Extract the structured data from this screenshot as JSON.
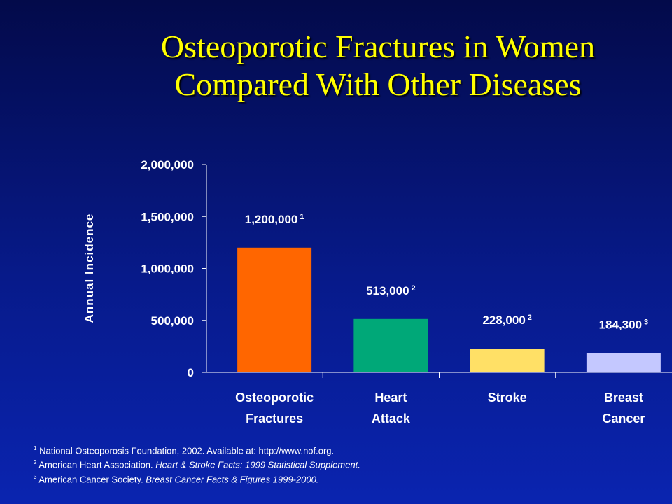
{
  "slide": {
    "title_line1": "Osteoporotic Fractures in Women",
    "title_line2": "Compared With Other Diseases"
  },
  "chart_data": {
    "type": "bar",
    "ylabel": "Annual Incidence",
    "ylim": [
      0,
      2000000
    ],
    "yticks": [
      "0",
      "500,000",
      "1,000,000",
      "1,500,000",
      "2,000,000"
    ],
    "ytick_values": [
      0,
      500000,
      1000000,
      1500000,
      2000000
    ],
    "categories": [
      [
        "Osteoporotic",
        "Fractures"
      ],
      [
        "Heart",
        "Attack"
      ],
      [
        "Stroke"
      ],
      [
        "Breast",
        "Cancer"
      ]
    ],
    "values": [
      1200000,
      513000,
      228000,
      184300
    ],
    "data_labels": [
      "1,200,000",
      "513,000",
      "228,000",
      "184,300"
    ],
    "label_superscripts": [
      "1",
      "2",
      "2",
      "3"
    ],
    "colors": [
      "#ff6600",
      "#00a878",
      "#ffe066",
      "#c4c8ff"
    ],
    "grid": false
  },
  "references": [
    {
      "num": "1",
      "text": "National Osteoporosis Foundation, 2002. Available at: http://www.nof.org.",
      "italic": ""
    },
    {
      "num": "2",
      "text": "American Heart Association. ",
      "italic": "Heart & Stroke Facts: 1999 Statistical Supplement."
    },
    {
      "num": "3",
      "text": "American Cancer Society. ",
      "italic": "Breast Cancer Facts & Figures 1999-2000."
    }
  ]
}
